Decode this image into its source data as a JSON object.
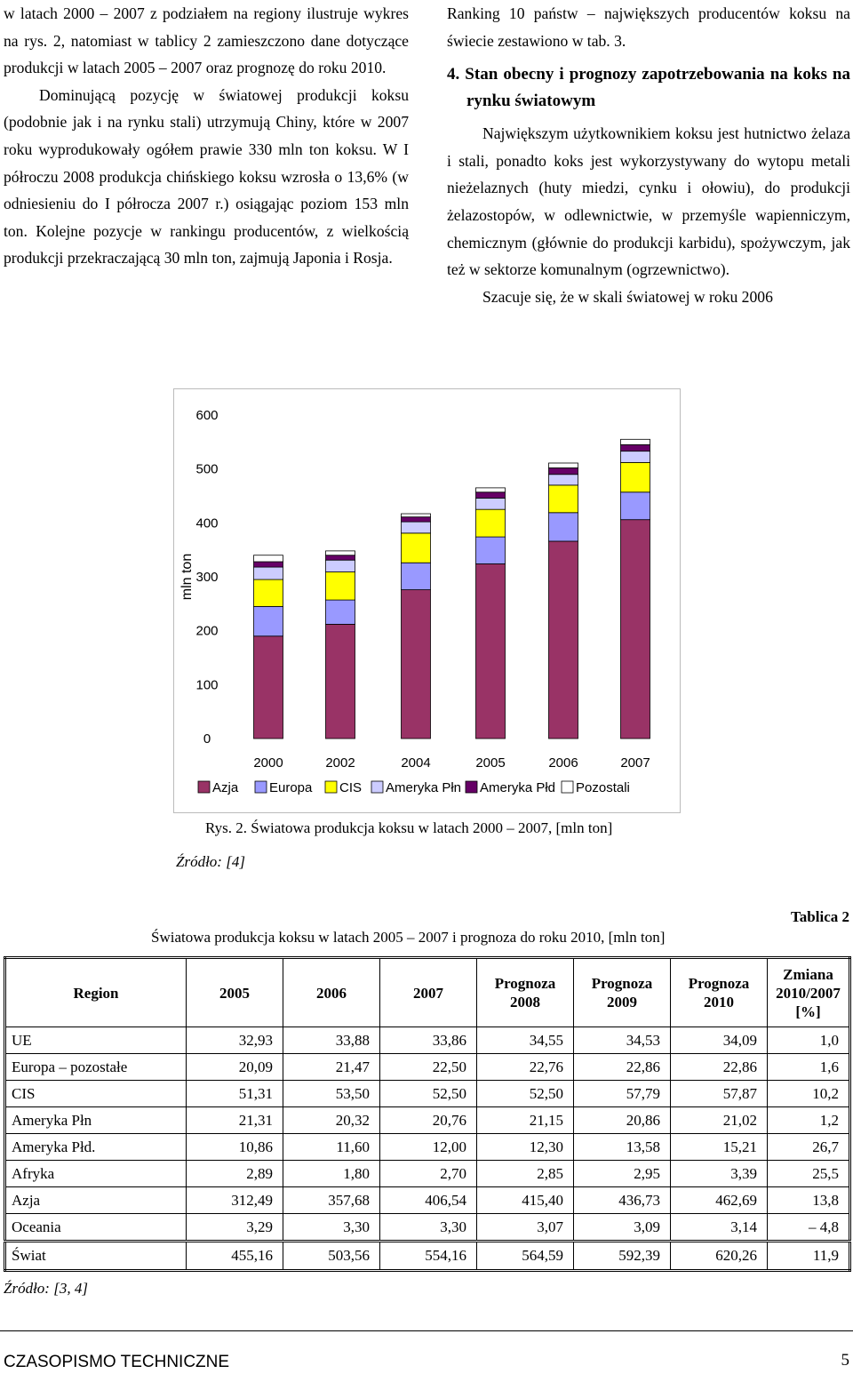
{
  "left_column": {
    "p1": "w latach 2000 – 2007 z podziałem na regiony ilustruje wykres na rys. 2, natomiast w tablicy 2 zamieszczono dane dotyczące produkcji w latach 2005 – 2007 oraz prognozę do roku 2010.",
    "p2": "Dominującą pozycję w światowej produkcji koksu (podobnie jak i na rynku stali) utrzymują Chiny, które w 2007 roku wyprodukowały ogółem prawie 330 mln ton koksu. W I półroczu 2008 produkcja chińskiego koksu wzrosła o 13,6% (w odniesieniu do I półrocza 2007 r.) osiągając poziom 153 mln ton. Kolejne pozycje w rankingu producentów, z wielkością produkcji przekraczającą 30 mln ton, zajmują Japonia i Rosja."
  },
  "right_column": {
    "p1": "Ranking 10 państw – największych producentów koksu na świecie zestawiono w tab. 3.",
    "heading": "4. Stan obecny i prognozy zapotrzebowania na koks na rynku światowym",
    "p2": "Największym użytkownikiem koksu jest hutnictwo żelaza i stali, ponadto koks jest wykorzystywany do wytopu metali nieżelaznych (huty miedzi, cynku i ołowiu), do produkcji żelazostopów, w odlewnictwie, w przemyśle wapienniczym, chemicznym (głównie do produkcji karbidu), spożywczym, jak też w sektorze komunalnym (ogrzewnictwo).",
    "p3": "Szacuje się, że w skali światowej w roku 2006"
  },
  "chart_data": {
    "type": "bar",
    "stacked": true,
    "categories": [
      "2000",
      "2002",
      "2004",
      "2005",
      "2006",
      "2007"
    ],
    "ylabel": "mln ton",
    "ylim": [
      0,
      600
    ],
    "yticks": [
      "0",
      "100",
      "200",
      "300",
      "400",
      "500",
      "600"
    ],
    "series": [
      {
        "name": "Azja",
        "color": "#993366",
        "values": [
          190,
          212,
          276,
          324,
          366,
          406
        ]
      },
      {
        "name": "Europa",
        "color": "#9999FF",
        "values": [
          55,
          45,
          50,
          50,
          53,
          51
        ]
      },
      {
        "name": "CIS",
        "color": "#FFFF00",
        "values": [
          50,
          52,
          55,
          51,
          51,
          55
        ]
      },
      {
        "name": "Ameryka Płn",
        "color": "#CCCCFF",
        "values": [
          23,
          22,
          21,
          21,
          20,
          21
        ]
      },
      {
        "name": "Ameryka Płd",
        "color": "#660066",
        "values": [
          10,
          9,
          9,
          11,
          12,
          12
        ]
      },
      {
        "name": "Pozostali",
        "color": "#FFFFFF",
        "values": [
          12,
          8,
          6,
          8,
          9,
          10
        ]
      }
    ],
    "legend_position": "bottom"
  },
  "figure": {
    "caption": "Rys. 2. Światowa produkcja koksu w latach 2000 – 2007, [mln ton]",
    "source": "Źródło: [4]"
  },
  "table": {
    "label": "Tablica 2",
    "title": "Światowa produkcja koksu w latach 2005 – 2007 i prognoza do roku 2010, [mln ton]",
    "headers": [
      "Region",
      "2005",
      "2006",
      "2007",
      "Prognoza 2008",
      "Prognoza 2009",
      "Prognoza 2010",
      "Zmiana 2010/2007 [%]"
    ],
    "rows": [
      [
        "UE",
        "32,93",
        "33,88",
        "33,86",
        "34,55",
        "34,53",
        "34,09",
        "1,0"
      ],
      [
        "Europa – pozostałe",
        "20,09",
        "21,47",
        "22,50",
        "22,76",
        "22,86",
        "22,86",
        "1,6"
      ],
      [
        "CIS",
        "51,31",
        "53,50",
        "52,50",
        "52,50",
        "57,79",
        "57,87",
        "10,2"
      ],
      [
        "Ameryka Płn",
        "21,31",
        "20,32",
        "20,76",
        "21,15",
        "20,86",
        "21,02",
        "1,2"
      ],
      [
        "Ameryka Płd.",
        "10,86",
        "11,60",
        "12,00",
        "12,30",
        "13,58",
        "15,21",
        "26,7"
      ],
      [
        "Afryka",
        "2,89",
        "1,80",
        "2,70",
        "2,85",
        "2,95",
        "3,39",
        "25,5"
      ],
      [
        "Azja",
        "312,49",
        "357,68",
        "406,54",
        "415,40",
        "436,73",
        "462,69",
        "13,8"
      ],
      [
        "Oceania",
        "3,29",
        "3,30",
        "3,30",
        "3,07",
        "3,09",
        "3,14",
        "– 4,8"
      ],
      [
        "Świat",
        "455,16",
        "503,56",
        "554,16",
        "564,59",
        "592,39",
        "620,26",
        "11,9"
      ]
    ],
    "source": "Źródło: [3, 4]"
  },
  "footer": {
    "journal": "CZASOPISMO TECHNICZNE",
    "page": "5"
  }
}
